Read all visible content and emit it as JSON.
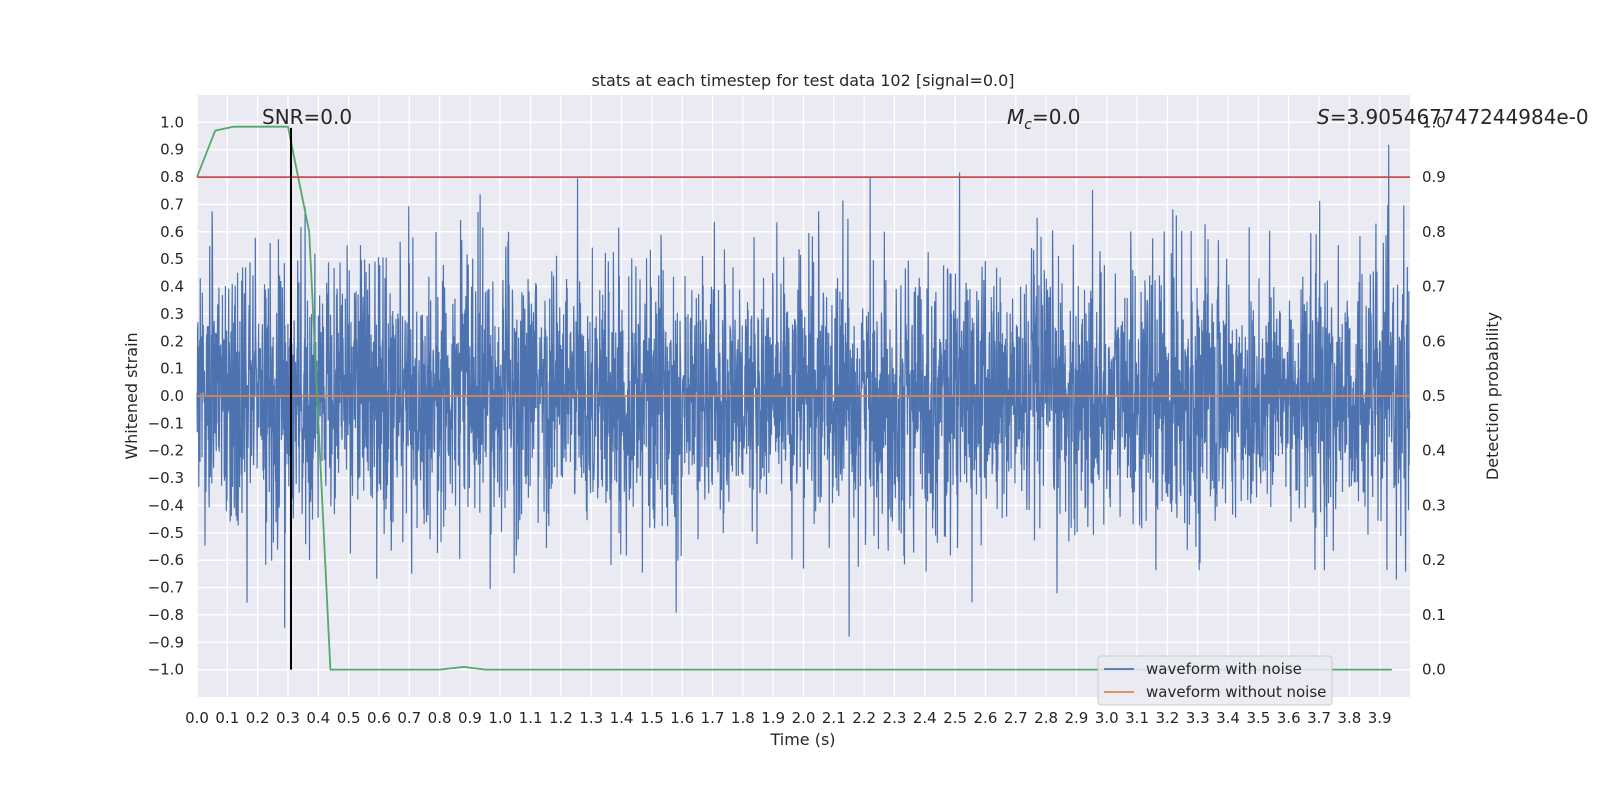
{
  "chart_data": {
    "type": "line",
    "title": "stats at each timestep for test data 102 [signal=0.0]",
    "xlabel": "Time (s)",
    "ylabel": "Whitened strain",
    "y2label": "Detection probability",
    "xlim": [
      0.0,
      4.0
    ],
    "ylim": [
      -1.1,
      1.1
    ],
    "y2lim": [
      -0.05,
      1.05
    ],
    "xticks": [
      "0.0",
      "0.1",
      "0.2",
      "0.3",
      "0.4",
      "0.5",
      "0.6",
      "0.7",
      "0.8",
      "0.9",
      "1.0",
      "1.1",
      "1.2",
      "1.3",
      "1.4",
      "1.5",
      "1.6",
      "1.7",
      "1.8",
      "1.9",
      "2.0",
      "2.1",
      "2.2",
      "2.3",
      "2.4",
      "2.5",
      "2.6",
      "2.7",
      "2.8",
      "2.9",
      "3.0",
      "3.1",
      "3.2",
      "3.3",
      "3.4",
      "3.5",
      "3.6",
      "3.7",
      "3.8",
      "3.9"
    ],
    "yticks": [
      "1.0",
      "0.9",
      "0.8",
      "0.7",
      "0.6",
      "0.5",
      "0.4",
      "0.3",
      "0.2",
      "0.1",
      "0.0",
      "−0.1",
      "−0.2",
      "−0.3",
      "−0.4",
      "−0.5",
      "−0.6",
      "−0.7",
      "−0.8",
      "−0.9",
      "−1.0"
    ],
    "y2ticks": [
      "1.0",
      "0.9",
      "0.8",
      "0.7",
      "0.6",
      "0.5",
      "0.4",
      "0.3",
      "0.2",
      "0.1",
      "0.0"
    ],
    "grid": true,
    "legend_position": "lower-right",
    "annotations": {
      "snr": "SNR=0.0",
      "mc_symbol": "M",
      "mc_sub": "c",
      "mc_value": "=0.0",
      "s_symbol": "S",
      "s_value": "=3.905467747244984e-0"
    },
    "series": [
      {
        "name": "waveform with noise",
        "color": "#4c72b0",
        "axis": "left",
        "kind": "noise",
        "n_samples": 4096,
        "approx_range": [
          -1.0,
          0.98
        ],
        "note_values": "random-like noise, typical amplitude within about ±0.5"
      },
      {
        "name": "waveform without noise",
        "color": "#dd8452",
        "axis": "left",
        "x": [
          0.0,
          4.0
        ],
        "y": [
          0.0,
          0.0
        ]
      },
      {
        "color": "#55a868",
        "axis": "right",
        "x": [
          0.0,
          0.06,
          0.12,
          0.18,
          0.24,
          0.3,
          0.37,
          0.44,
          0.5,
          0.6,
          0.7,
          0.8,
          0.88,
          0.95,
          1.0,
          1.5,
          2.0,
          2.5,
          3.0,
          3.5,
          3.94
        ],
        "y": [
          0.9,
          0.985,
          0.992,
          0.992,
          0.992,
          0.992,
          0.8,
          0.0,
          0.0,
          0.0,
          0.0,
          0.0,
          0.005,
          0.0,
          0.0,
          0.0,
          0.0,
          0.0,
          0.0,
          0.0,
          0.0
        ]
      },
      {
        "color": "#c44e52",
        "axis": "right",
        "x": [
          0.0,
          4.0
        ],
        "y": [
          0.9,
          0.9
        ]
      },
      {
        "color": "#000000",
        "axis": "left",
        "x": [
          0.31,
          0.31
        ],
        "y": [
          -1.0,
          0.98
        ]
      }
    ]
  }
}
